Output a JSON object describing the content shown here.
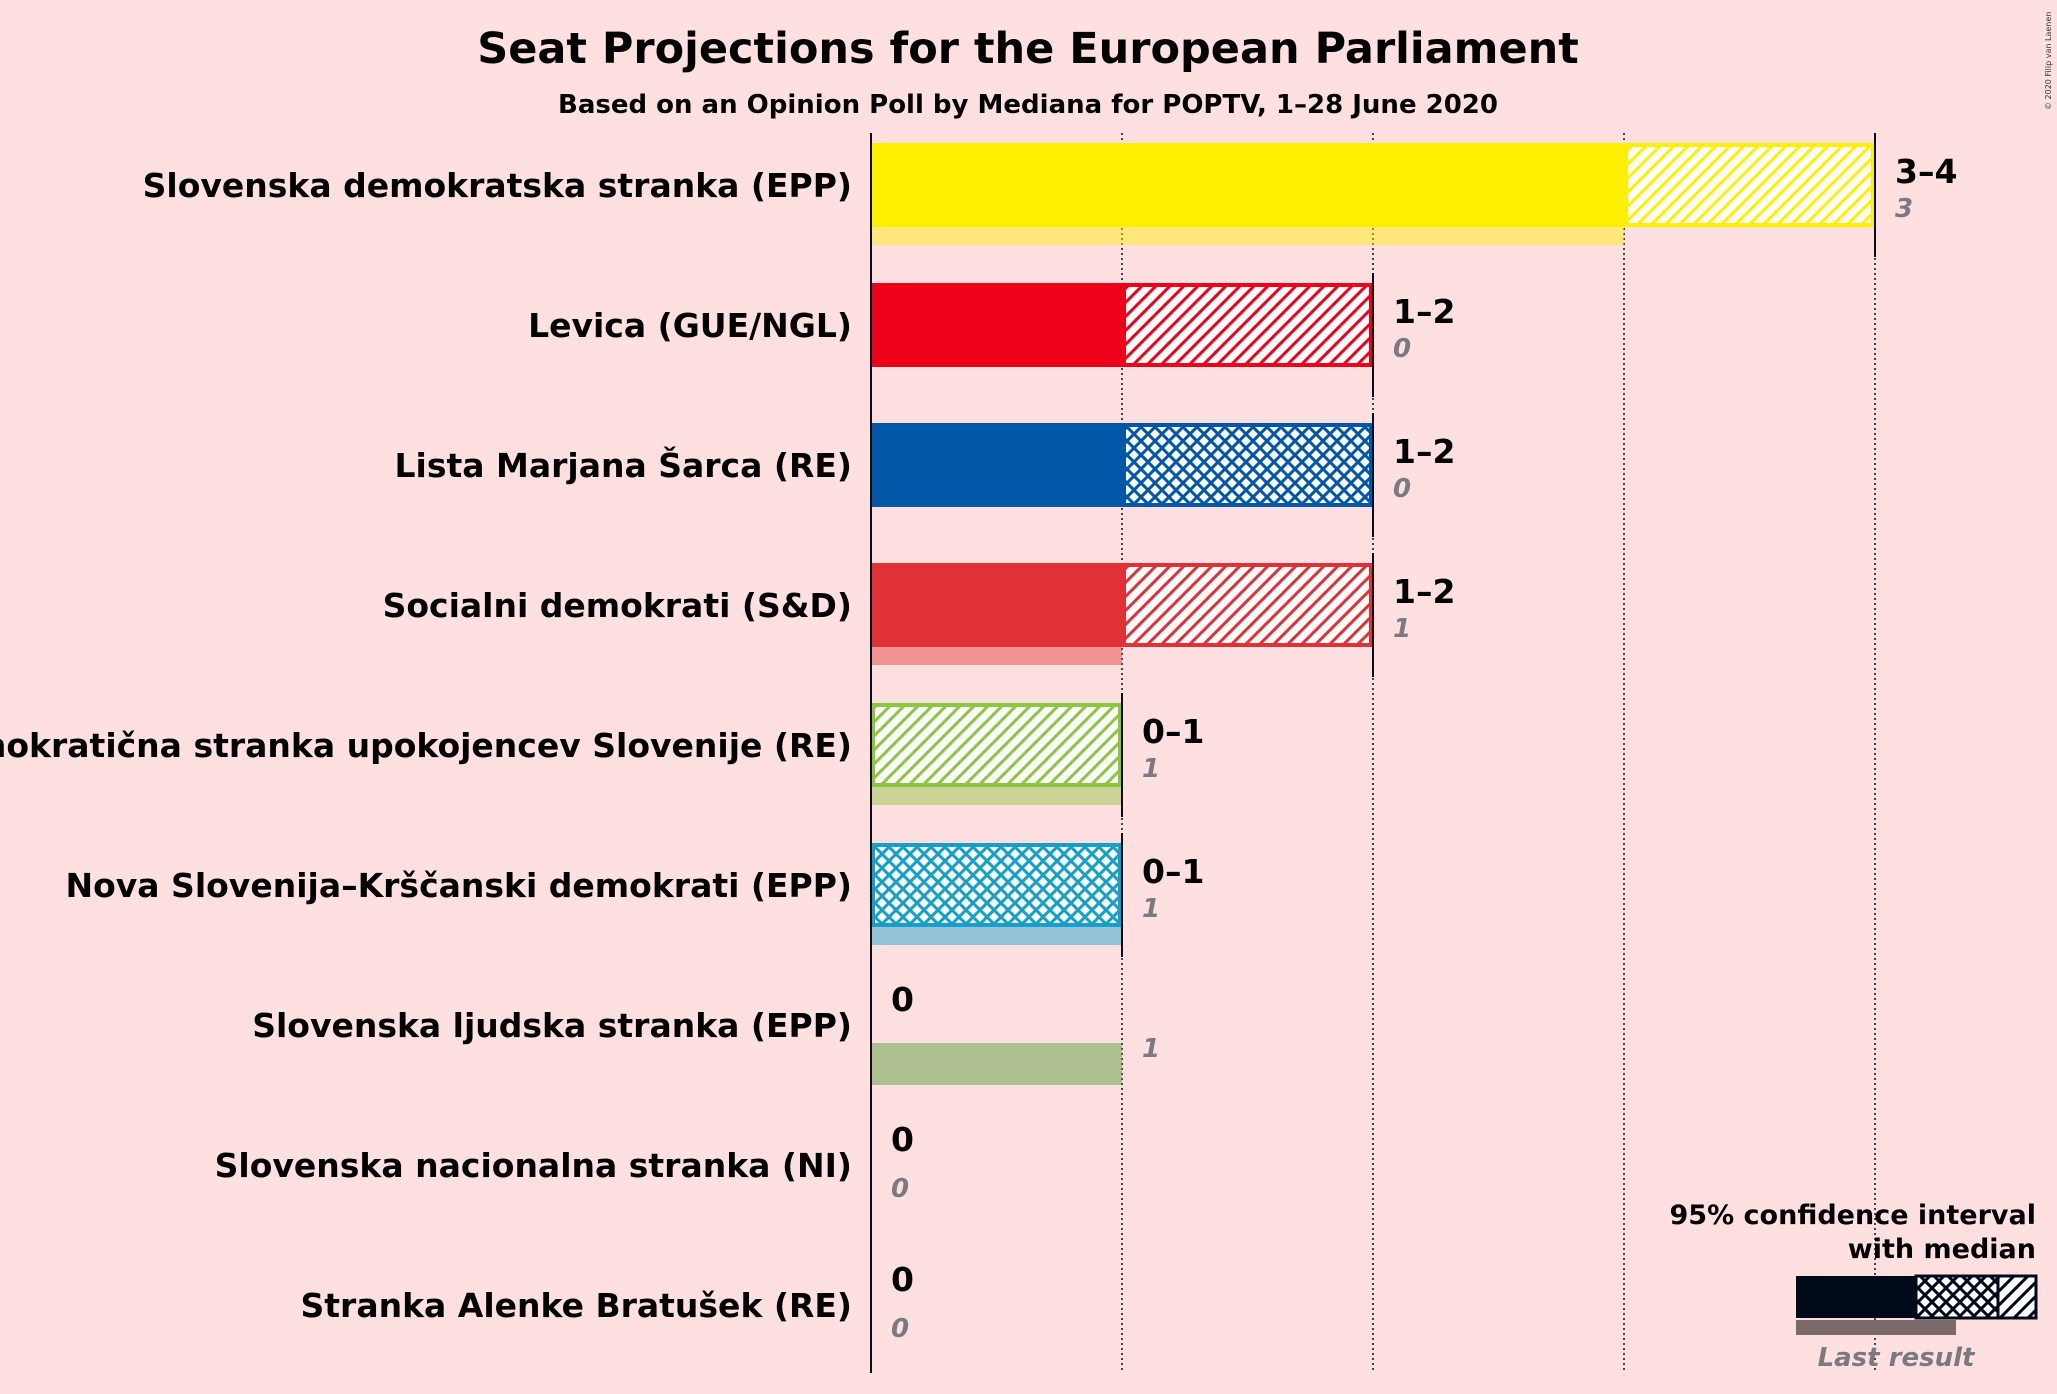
{
  "chart_data": {
    "type": "bar",
    "title": "Seat Projections for the European Parliament",
    "subtitle": "Based on an Opinion Poll by Mediana for POPTV, 1–28 June 2020",
    "credit": "© 2020 Filip van Laenen",
    "xlim": [
      0,
      4
    ],
    "gridlines": [
      1,
      2,
      3,
      4
    ],
    "parties": [
      {
        "name": "Slovenska demokratska stranka (EPP)",
        "low": 3,
        "median": 3,
        "high": 4,
        "last": 3,
        "range_label": "3–4",
        "last_label": "3",
        "color": "#FFF000",
        "pattern": "hatch"
      },
      {
        "name": "Levica (GUE/NGL)",
        "low": 1,
        "median": 1,
        "high": 2,
        "last": 0,
        "range_label": "1–2",
        "last_label": "0",
        "color": "#EE0018",
        "pattern": "hatch"
      },
      {
        "name": "Lista Marjana Šarca (RE)",
        "low": 1,
        "median": 1,
        "high": 2,
        "last": 0,
        "range_label": "1–2",
        "last_label": "0",
        "color": "#0057A8",
        "pattern": "cross"
      },
      {
        "name": "Socialni demokrati (S&D)",
        "low": 1,
        "median": 1,
        "high": 2,
        "last": 1,
        "range_label": "1–2",
        "last_label": "1",
        "color": "#E03236",
        "pattern": "hatch"
      },
      {
        "name": "Demokratična stranka upokojencev Slovenije (RE)",
        "low": 0,
        "median": 0,
        "high": 1,
        "last": 1,
        "range_label": "0–1",
        "last_label": "1",
        "color": "#8CC63F",
        "pattern": "hatch"
      },
      {
        "name": "Nova Slovenija–Krščanski demokrati (EPP)",
        "low": 0,
        "median": 0,
        "high": 1,
        "last": 1,
        "range_label": "0–1",
        "last_label": "1",
        "color": "#14A0C8",
        "pattern": "cross"
      },
      {
        "name": "Slovenska ljudska stranka (EPP)",
        "low": 0,
        "median": 0,
        "high": 0,
        "last": 1,
        "range_label": "0",
        "last_label": "1",
        "color": "#4D9A2F",
        "pattern": "hatch"
      },
      {
        "name": "Slovenska nacionalna stranka (NI)",
        "low": 0,
        "median": 0,
        "high": 0,
        "last": 0,
        "range_label": "0",
        "last_label": "0",
        "color": "#1F3A7A",
        "pattern": "hatch"
      },
      {
        "name": "Stranka Alenke Bratušek (RE)",
        "low": 0,
        "median": 0,
        "high": 0,
        "last": 0,
        "range_label": "0",
        "last_label": "0",
        "color": "#2D6EB4",
        "pattern": "hatch"
      }
    ],
    "legend": {
      "line1": "95% confidence interval",
      "line2": "with median",
      "last_result": "Last result",
      "color": "#00091A"
    }
  }
}
